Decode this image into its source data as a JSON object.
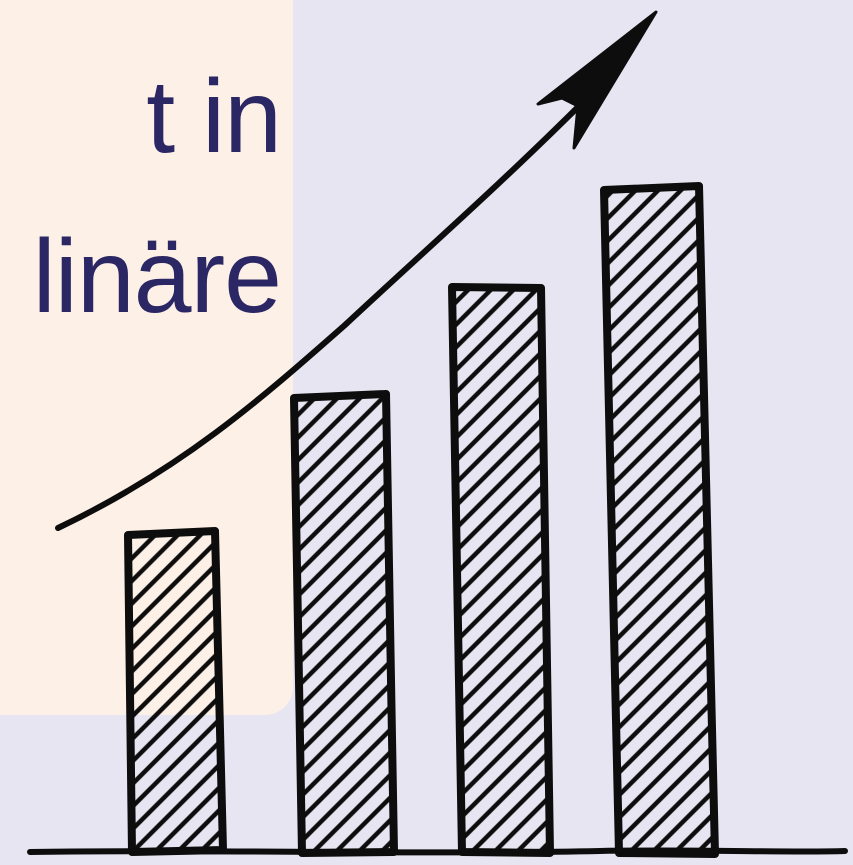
{
  "card": {
    "line1": "t in",
    "line2": "linäre"
  },
  "illustration": {
    "kind": "hand-drawn bar graph with upward arrow",
    "bar_levels": [
      0.45,
      0.62,
      0.74,
      0.85
    ],
    "ink_color": "#0d0d0d",
    "arrow_icon": "trend-arrow-up-icon"
  },
  "colors": {
    "page_background": "#e6e5f1",
    "card_background": "#fdf0e6",
    "text": "#2a2764"
  }
}
